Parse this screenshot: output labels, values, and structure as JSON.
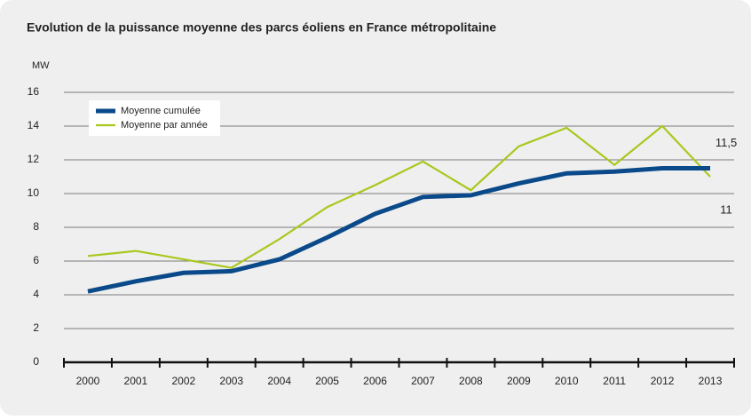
{
  "chart_data": {
    "type": "line",
    "title": "Evolution de la puissance moyenne des parcs éoliens en France métropolitaine",
    "y_label": "MW",
    "categories": [
      "2000",
      "2001",
      "2002",
      "2003",
      "2004",
      "2005",
      "2006",
      "2007",
      "2008",
      "2009",
      "2010",
      "2011",
      "2012",
      "2013"
    ],
    "series": [
      {
        "name": "Moyenne cumulée",
        "color": "#0a4a8a",
        "values": [
          4.2,
          4.8,
          5.3,
          5.4,
          6.1,
          7.4,
          8.8,
          9.8,
          9.9,
          10.6,
          11.2,
          11.3,
          11.5,
          11.5
        ],
        "value_labels": [
          null,
          null,
          null,
          null,
          null,
          null,
          null,
          null,
          null,
          null,
          null,
          null,
          null,
          "11,5"
        ]
      },
      {
        "name": "Moyenne par année",
        "color": "#a8c81e",
        "values": [
          6.3,
          6.6,
          6.1,
          5.6,
          7.3,
          9.2,
          10.5,
          11.9,
          10.2,
          12.8,
          13.9,
          11.7,
          14.0,
          11
        ],
        "value_labels": [
          null,
          null,
          null,
          null,
          null,
          null,
          null,
          null,
          null,
          null,
          null,
          null,
          null,
          "11"
        ]
      }
    ],
    "ylim": [
      0,
      16
    ],
    "yticks": [
      0,
      2,
      4,
      6,
      8,
      10,
      12,
      14,
      16
    ],
    "grid": true,
    "legend": "upper left"
  }
}
